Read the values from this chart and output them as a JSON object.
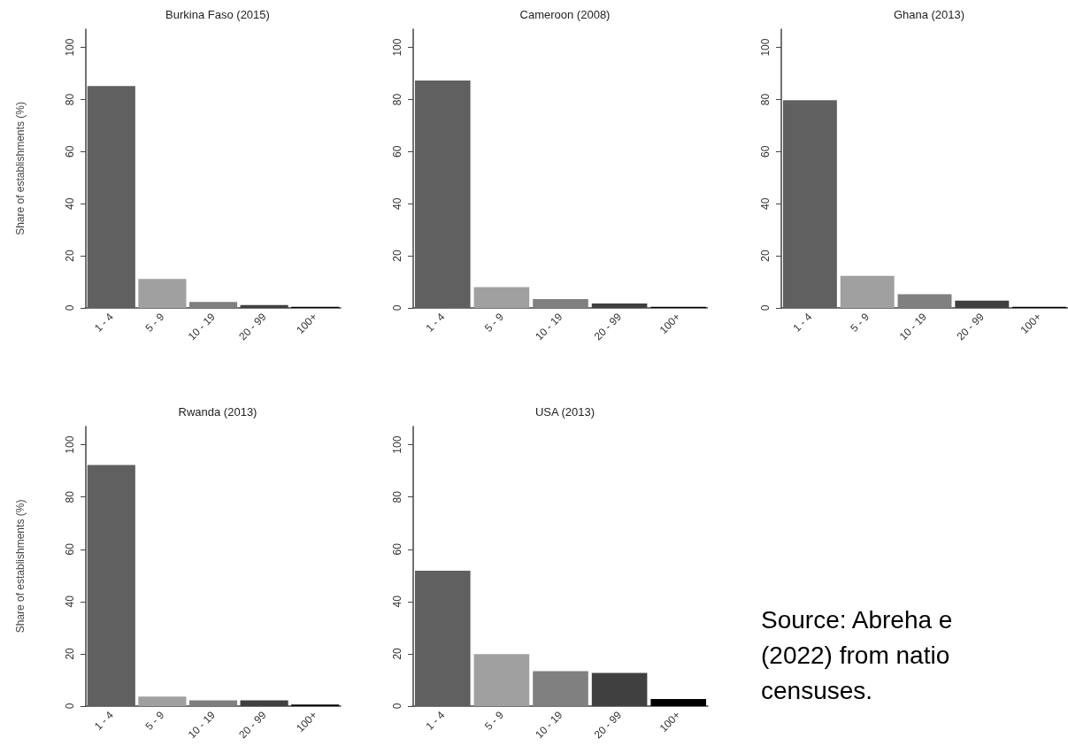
{
  "chart_data": [
    {
      "type": "bar",
      "title": "Burkina Faso (2015)",
      "ylabel": "Share of establishments (%)",
      "categories": [
        "1 - 4",
        "5 - 9",
        "10 - 19",
        "20 - 99",
        "100+"
      ],
      "values": [
        85.2,
        11.1,
        2.3,
        1.1,
        0.4
      ],
      "colors": [
        "#606060",
        "#a0a0a0",
        "#808080",
        "#404040",
        "#000000"
      ],
      "ylim": [
        0,
        107
      ],
      "yticks": [
        0,
        20,
        40,
        60,
        80,
        100
      ]
    },
    {
      "type": "bar",
      "title": "Cameroon (2008)",
      "categories": [
        "1 - 4",
        "5 - 9",
        "10 - 19",
        "20 - 99",
        "100+"
      ],
      "values": [
        87.3,
        8.0,
        3.4,
        1.7,
        0.4
      ],
      "colors": [
        "#606060",
        "#a0a0a0",
        "#808080",
        "#404040",
        "#000000"
      ],
      "ylim": [
        0,
        107
      ],
      "yticks": [
        0,
        20,
        40,
        60,
        80,
        100
      ]
    },
    {
      "type": "bar",
      "title": "Ghana (2013)",
      "categories": [
        "1 - 4",
        "5 - 9",
        "10 - 19",
        "20 - 99",
        "100+"
      ],
      "values": [
        79.7,
        12.3,
        5.3,
        2.8,
        0.4
      ],
      "colors": [
        "#606060",
        "#a0a0a0",
        "#808080",
        "#404040",
        "#000000"
      ],
      "ylim": [
        0,
        107
      ],
      "yticks": [
        0,
        20,
        40,
        60,
        80,
        100
      ]
    },
    {
      "type": "bar",
      "title": "Rwanda (2013)",
      "ylabel": "Share of establishments (%)",
      "categories": [
        "1 - 4",
        "5 - 9",
        "10 - 19",
        "20 - 99",
        "100+"
      ],
      "values": [
        92.3,
        3.6,
        2.2,
        2.2,
        0.6
      ],
      "colors": [
        "#606060",
        "#a0a0a0",
        "#808080",
        "#404040",
        "#000000"
      ],
      "ylim": [
        0,
        107
      ],
      "yticks": [
        0,
        20,
        40,
        60,
        80,
        100
      ]
    },
    {
      "type": "bar",
      "title": "USA (2013)",
      "categories": [
        "1 - 4",
        "5 - 9",
        "10 - 19",
        "20 - 99",
        "100+"
      ],
      "values": [
        51.8,
        19.9,
        13.4,
        12.7,
        2.7
      ],
      "colors": [
        "#606060",
        "#a0a0a0",
        "#808080",
        "#404040",
        "#000000"
      ],
      "ylim": [
        0,
        107
      ],
      "yticks": [
        0,
        20,
        40,
        60,
        80,
        100
      ],
      "annotations": [
        "Source: Abreha e\n(2022) from natio\ncensuses."
      ]
    }
  ]
}
